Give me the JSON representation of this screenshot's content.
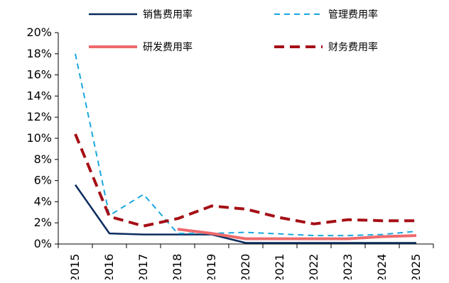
{
  "chart_data": {
    "type": "line",
    "x": [
      "2015",
      "2016",
      "2017",
      "2018",
      "2019",
      "2020",
      "2021",
      "2022",
      "2023",
      "2024",
      "2025"
    ],
    "ylim": [
      0,
      20
    ],
    "y_ticks": [
      "0%",
      "2%",
      "4%",
      "6%",
      "8%",
      "10%",
      "12%",
      "14%",
      "16%",
      "18%",
      "20%"
    ],
    "y_tick_values": [
      0,
      2,
      4,
      6,
      8,
      10,
      12,
      14,
      16,
      18,
      20
    ],
    "grid": false,
    "legend_position": "top",
    "series": [
      {
        "name": "销售费用率",
        "color": "#0b2b5e",
        "dash": "solid",
        "width": 2.5,
        "values": [
          5.6,
          1.0,
          0.9,
          0.9,
          0.9,
          0.1,
          0.1,
          0.1,
          0.1,
          0.1,
          0.1
        ]
      },
      {
        "name": "管理费用率",
        "color": "#1aa7df",
        "dash": "dashed",
        "width": 2,
        "values": [
          18.0,
          2.7,
          4.7,
          1.0,
          1.0,
          1.1,
          0.95,
          0.8,
          0.8,
          0.9,
          1.2
        ]
      },
      {
        "name": "研发费用率",
        "color": "#ee6a6c",
        "dash": "solid",
        "width": 4,
        "values": [
          null,
          null,
          null,
          1.4,
          1.0,
          0.5,
          0.5,
          0.5,
          0.5,
          0.7,
          0.8
        ]
      },
      {
        "name": "财务费用率",
        "color": "#a50f15",
        "dash": "dashed",
        "width": 4,
        "values": [
          10.4,
          2.6,
          1.7,
          2.4,
          3.6,
          3.3,
          2.5,
          1.9,
          2.3,
          2.2,
          2.2
        ]
      }
    ]
  }
}
